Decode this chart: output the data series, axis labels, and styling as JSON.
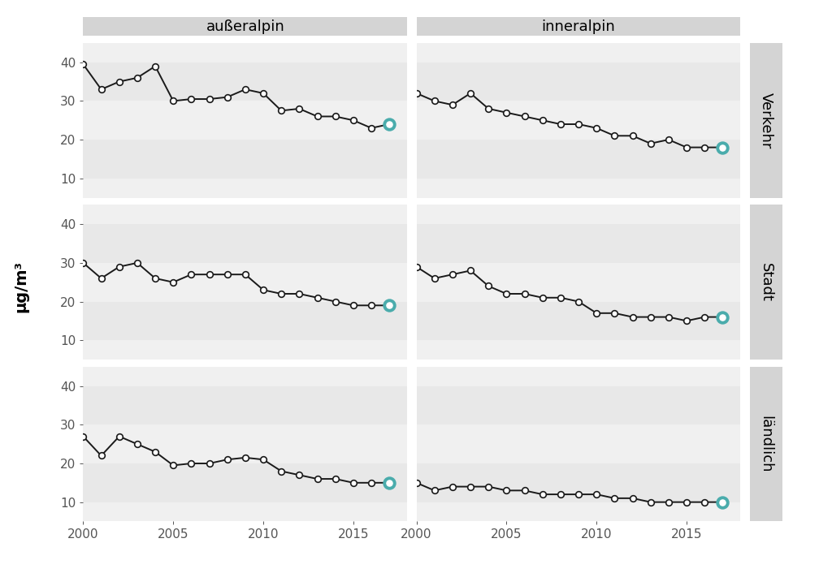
{
  "years": [
    2000,
    2001,
    2002,
    2003,
    2004,
    2005,
    2006,
    2007,
    2008,
    2009,
    2010,
    2011,
    2012,
    2013,
    2014,
    2015,
    2016,
    2017
  ],
  "col_titles": [
    "außeralpin",
    "inneralpin"
  ],
  "row_titles": [
    "Verkehr",
    "Stadt",
    "ländlich"
  ],
  "data": {
    "ausseralpin_verkehr": [
      39.5,
      33,
      35,
      36,
      39,
      30,
      30.5,
      30.5,
      31,
      33,
      32,
      27.5,
      28,
      26,
      26,
      25,
      23,
      24
    ],
    "inneralpin_verkehr": [
      32,
      30,
      29,
      32,
      28,
      27,
      26,
      25,
      24,
      24,
      23,
      21,
      21,
      19,
      20,
      18,
      18,
      18
    ],
    "ausseralpin_stadt": [
      30,
      26,
      29,
      30,
      26,
      25,
      27,
      27,
      27,
      27,
      23,
      22,
      22,
      21,
      20,
      19,
      19,
      19
    ],
    "inneralpin_stadt": [
      29,
      26,
      27,
      28,
      24,
      22,
      22,
      21,
      21,
      20,
      17,
      17,
      16,
      16,
      16,
      15,
      16,
      16
    ],
    "ausseralpin_laendlich": [
      27,
      22,
      27,
      25,
      23,
      19.5,
      20,
      20,
      21,
      21.5,
      21,
      18,
      17,
      16,
      16,
      15,
      15,
      15
    ],
    "inneralpin_laendlich": [
      15,
      13,
      14,
      14,
      14,
      13,
      13,
      12,
      12,
      12,
      12,
      11,
      11,
      10,
      10,
      10,
      10,
      10
    ]
  },
  "highlight_color": "#4aacac",
  "line_color": "#1a1a1a",
  "marker_face": "white",
  "marker_edge": "#1a1a1a",
  "strip_bg": "#d4d4d4",
  "plot_bg": "#e8e8e8",
  "fig_bg": "#ffffff",
  "outer_bg": "#ebebeb",
  "ylim": [
    5,
    45
  ],
  "yticks": [
    10,
    20,
    30,
    40
  ],
  "xlim": [
    2000,
    2018
  ],
  "xticks": [
    2000,
    2005,
    2010,
    2015
  ],
  "xlabel_fontsize": 11,
  "ylabel_fontsize": 14,
  "strip_fontsize": 13,
  "tick_fontsize": 11,
  "ylabel": "μg/m³"
}
